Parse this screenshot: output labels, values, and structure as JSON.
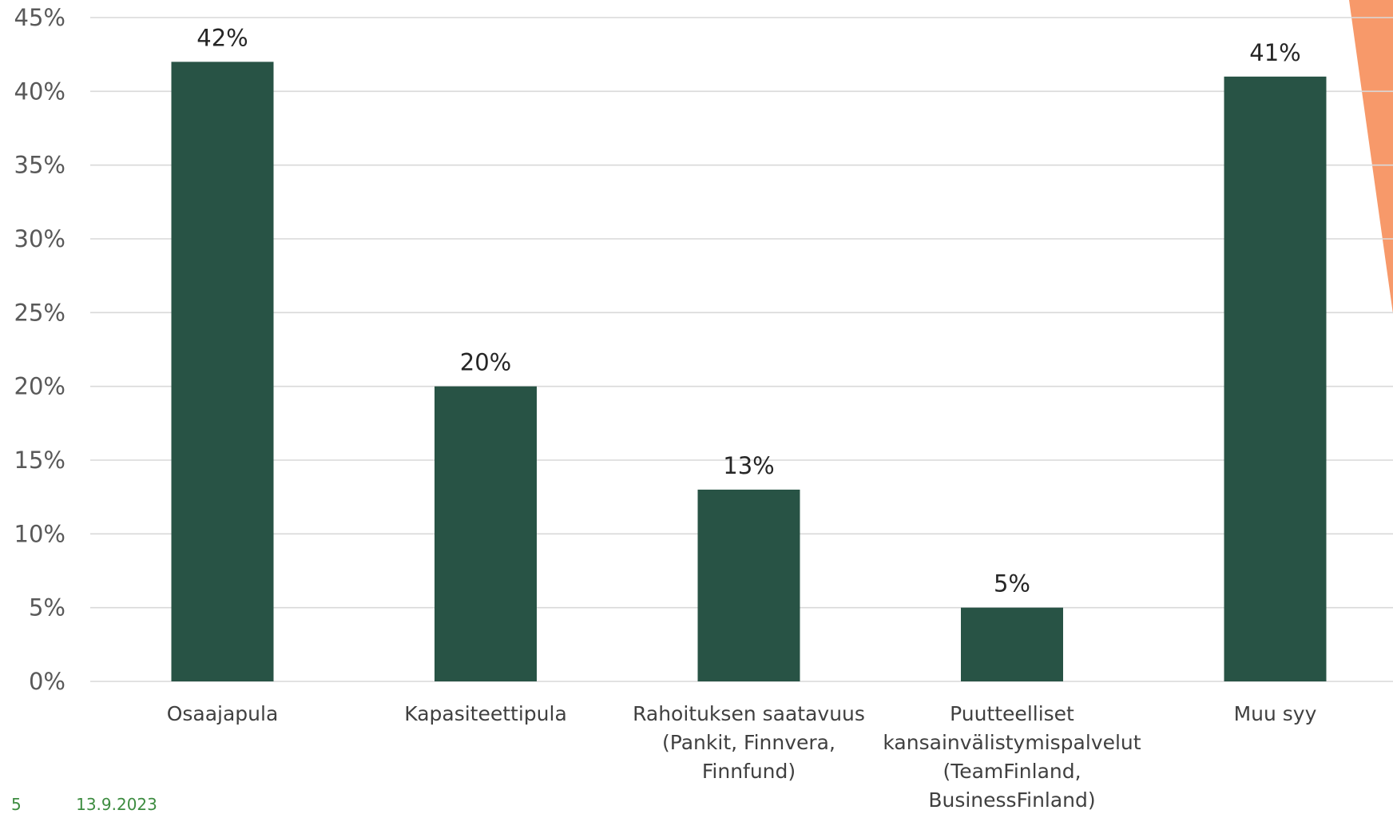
{
  "colors": {
    "bar": "#285345",
    "grid": "#d9d9d9",
    "accent_shape": "#f7996a",
    "footer_text": "#3d8c40"
  },
  "footer": {
    "page_number": "5",
    "date": "13.9.2023"
  },
  "chart_data": {
    "type": "bar",
    "title": "",
    "xlabel": "",
    "ylabel": "",
    "categories": [
      [
        "Osaajapula"
      ],
      [
        "Kapasiteettipula"
      ],
      [
        "Rahoituksen saatavuus",
        "(Pankit, Finnvera,",
        "Finnfund)"
      ],
      [
        "Puutteelliset",
        "kansainvälistymispalvelut",
        "(TeamFinland,",
        "BusinessFinland)"
      ],
      [
        "Muu syy"
      ]
    ],
    "values": [
      42,
      20,
      13,
      5,
      41
    ],
    "data_labels": [
      "42%",
      "20%",
      "13%",
      "5%",
      "41%"
    ],
    "ylim": [
      0,
      45
    ],
    "yticks": [
      0,
      5,
      10,
      15,
      20,
      25,
      30,
      35,
      40,
      45
    ],
    "ytick_labels": [
      "0%",
      "5%",
      "10%",
      "15%",
      "20%",
      "25%",
      "30%",
      "35%",
      "40%",
      "45%"
    ],
    "grid": true,
    "legend": "none"
  }
}
